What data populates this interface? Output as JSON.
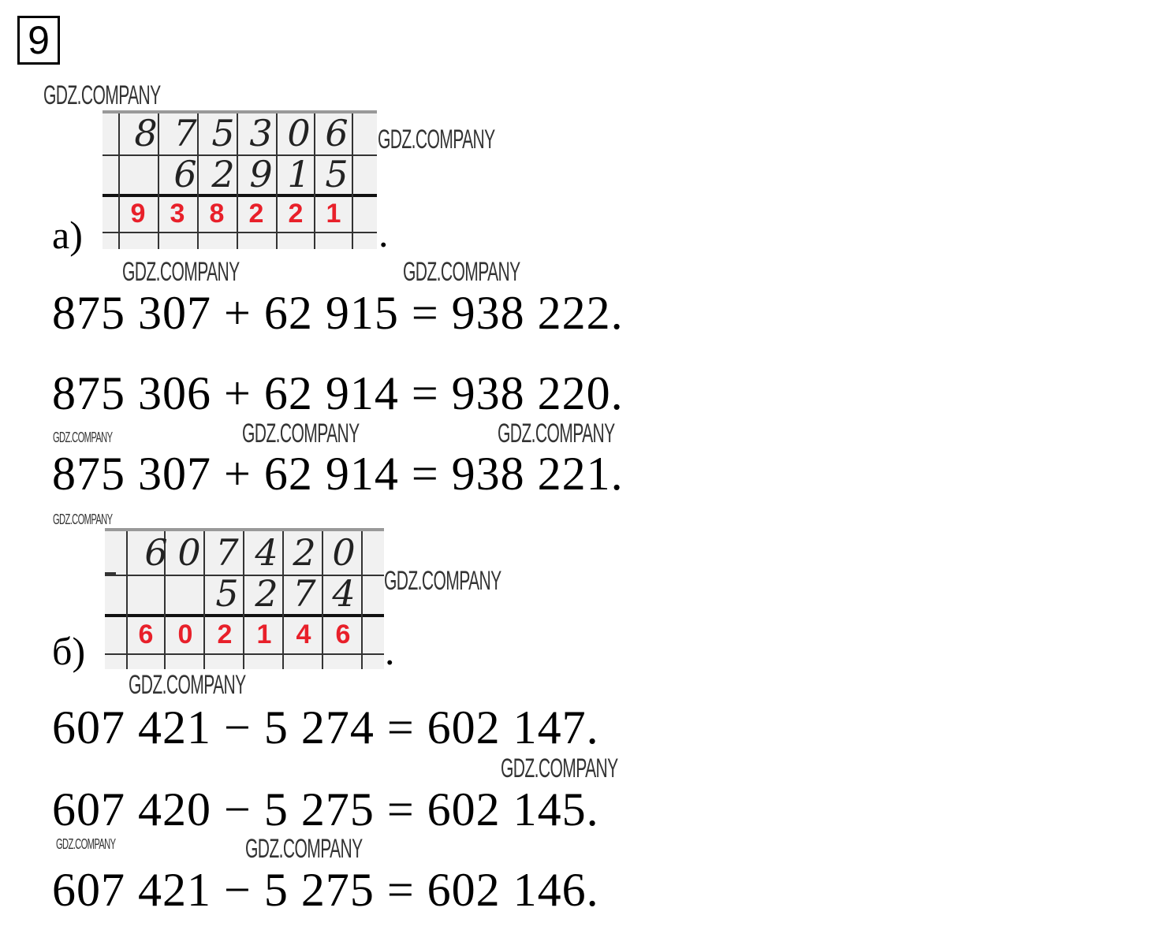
{
  "task_number": "9",
  "watermark": "GDZ.COMPANY",
  "part_a": {
    "label": "а)",
    "column": {
      "top": [
        "8",
        "7",
        "5",
        "3",
        "0",
        "6"
      ],
      "bottom": [
        "6",
        "2",
        "9",
        "1",
        "5"
      ],
      "result": [
        "9",
        "3",
        "8",
        "2",
        "2",
        "1"
      ]
    },
    "equations": [
      "875 307 + 62 915 = 938 222.",
      "875 306 + 62 914 = 938 220.",
      "875 307 + 62 914 = 938 221."
    ]
  },
  "part_b": {
    "label": "б)",
    "column": {
      "top": [
        "6",
        "0",
        "7",
        "4",
        "2",
        "0"
      ],
      "bottom": [
        "5",
        "2",
        "7",
        "4"
      ],
      "result": [
        "6",
        "0",
        "2",
        "1",
        "4",
        "6"
      ]
    },
    "equations": [
      "607 421 − 5 274 = 602 147.",
      "607 420 − 5 275 = 602 145.",
      "607 421 − 5 275 = 602 146."
    ]
  },
  "colors": {
    "result_digits": "#e8202a"
  }
}
